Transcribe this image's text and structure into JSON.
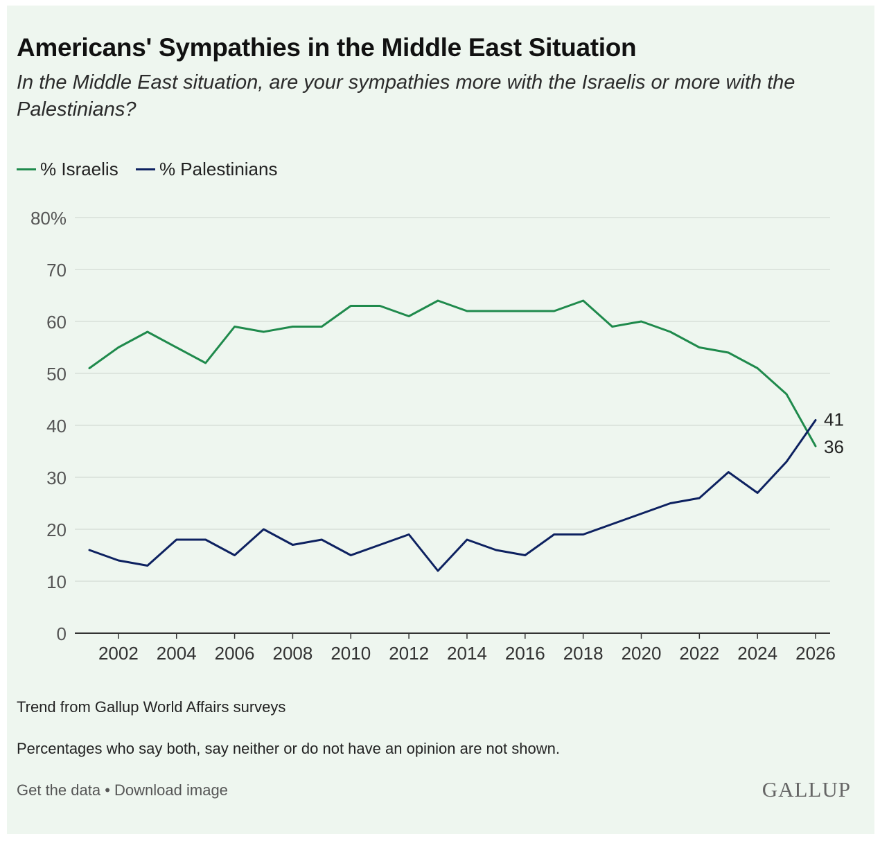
{
  "header": {
    "title": "Americans' Sympathies in the Middle East Situation",
    "subtitle": "In the Middle East situation, are your sympathies more with the Israelis or more with the Palestinians?"
  },
  "colors": {
    "israelis": "#1f8a4c",
    "palestinians": "#0d2160",
    "grid": "#d7dfd8",
    "axis": "#333333",
    "tick": "#555555"
  },
  "chart_data": {
    "type": "line",
    "title": "Americans' Sympathies in the Middle East Situation",
    "xlabel": "",
    "ylabel": "",
    "x": [
      2001,
      2002,
      2003,
      2004,
      2005,
      2006,
      2007,
      2008,
      2009,
      2010,
      2011,
      2012,
      2013,
      2014,
      2015,
      2016,
      2017,
      2018,
      2019,
      2020,
      2021,
      2022,
      2023,
      2024,
      2025,
      2026
    ],
    "series": [
      {
        "name": "% Israelis",
        "color": "#1f8a4c",
        "values": [
          51,
          55,
          58,
          55,
          52,
          59,
          58,
          59,
          59,
          63,
          63,
          61,
          64,
          62,
          62,
          62,
          62,
          64,
          59,
          60,
          58,
          55,
          54,
          51,
          46,
          36
        ]
      },
      {
        "name": "% Palestinians",
        "color": "#0d2160",
        "values": [
          16,
          14,
          13,
          18,
          18,
          15,
          20,
          17,
          18,
          15,
          17,
          19,
          12,
          18,
          16,
          15,
          19,
          19,
          21,
          23,
          25,
          26,
          31,
          27,
          33,
          41
        ]
      }
    ],
    "ylim": [
      0,
      80
    ],
    "yticks": [
      0,
      10,
      20,
      30,
      40,
      50,
      60,
      70,
      80
    ],
    "ytick_labels": [
      "0",
      "10",
      "20",
      "30",
      "40",
      "50",
      "60",
      "70",
      "80%"
    ],
    "xlim": [
      2000.5,
      2026.5
    ],
    "xticks": [
      2002,
      2004,
      2006,
      2008,
      2010,
      2012,
      2014,
      2016,
      2018,
      2020,
      2022,
      2024,
      2026
    ],
    "xtick_labels": [
      "2002",
      "2004",
      "2006",
      "2008",
      "2010",
      "2012",
      "2014",
      "2016",
      "2018",
      "2020",
      "2022",
      "2024",
      "2026"
    ],
    "end_labels": {
      "israelis": "36",
      "palestinians": "41"
    },
    "legend": "top-left",
    "grid": true
  },
  "notes": {
    "trend": "Trend from Gallup World Affairs surveys",
    "footnote": "Percentages who say both, say neither or do not have an opinion are not shown."
  },
  "footer": {
    "get_data": "Get the data",
    "separator": "•",
    "download": "Download image",
    "logo": "GALLUP"
  }
}
